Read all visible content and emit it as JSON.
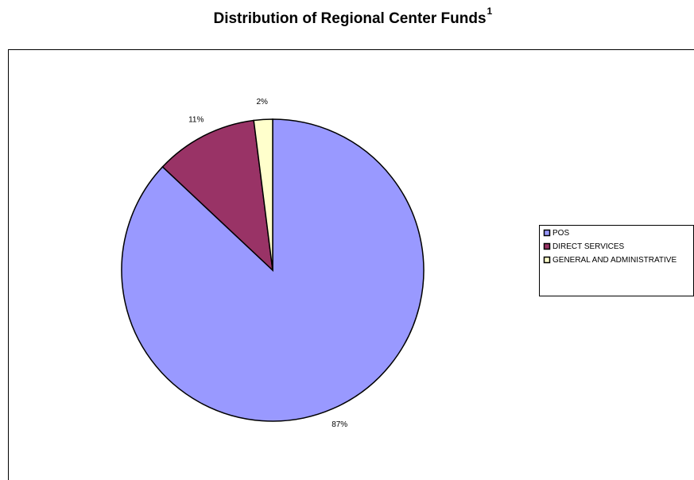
{
  "chart_data": {
    "type": "pie",
    "title": "Distribution of Regional Center Funds",
    "title_superscript": "1",
    "categories": [
      "POS",
      "DIRECT SERVICES",
      "GENERAL AND ADMINISTRATIVE"
    ],
    "values": [
      87,
      11,
      2
    ],
    "value_labels": [
      "87%",
      "11%",
      "2%"
    ],
    "colors": [
      "#9999ff",
      "#993366",
      "#ffffcc"
    ],
    "legend": "right"
  }
}
